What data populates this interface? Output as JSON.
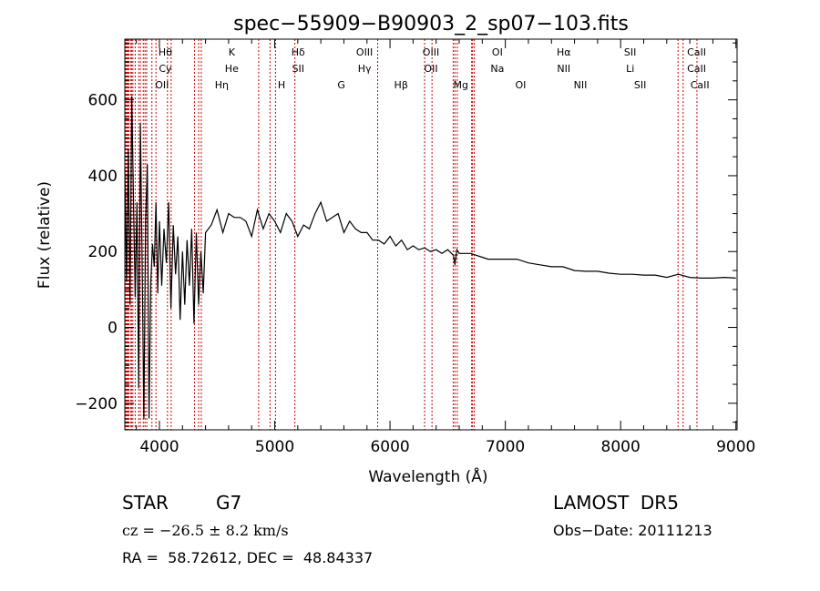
{
  "chart_data": {
    "type": "line",
    "title": "spec−55909−B90903_2_sp07−103.fits",
    "xlabel": "Wavelength (Å)",
    "ylabel": "Flux (relative)",
    "xlim": [
      3700,
      9010
    ],
    "ylim": [
      -270,
      760
    ],
    "xticks": [
      4000,
      5000,
      6000,
      7000,
      8000,
      9000
    ],
    "xtick_labels": [
      "4000",
      "5000",
      "6000",
      "7000",
      "8000",
      "9000"
    ],
    "yticks": [
      -200,
      0,
      200,
      400,
      600
    ],
    "ytick_labels": [
      "−200",
      "0",
      "200",
      "400",
      "600"
    ],
    "grid": false,
    "series": [
      {
        "x": [
          3700,
          3715,
          3730,
          3745,
          3760,
          3775,
          3790,
          3805,
          3820,
          3835,
          3850,
          3865,
          3880,
          3895,
          3910,
          3925,
          3940,
          3955,
          3970,
          3985,
          4000,
          4020,
          4040,
          4060,
          4080,
          4100,
          4120,
          4140,
          4160,
          4180,
          4200,
          4220,
          4240,
          4260,
          4280,
          4300,
          4320,
          4340,
          4360,
          4380,
          4400,
          4450,
          4500,
          4550,
          4600,
          4650,
          4700,
          4750,
          4800,
          4850,
          4900,
          4950,
          5000,
          5050,
          5100,
          5150,
          5200,
          5250,
          5300,
          5350,
          5400,
          5450,
          5500,
          5550,
          5600,
          5650,
          5700,
          5750,
          5800,
          5850,
          5900,
          5950,
          6000,
          6050,
          6100,
          6150,
          6200,
          6250,
          6300,
          6350,
          6400,
          6450,
          6500,
          6550,
          6563,
          6580,
          6600,
          6650,
          6700,
          6750,
          6800,
          6850,
          6900,
          6950,
          7000,
          7100,
          7200,
          7300,
          7400,
          7500,
          7600,
          7700,
          7800,
          7900,
          8000,
          8100,
          8200,
          8300,
          8400,
          8500,
          8600,
          8700,
          8800,
          8900,
          9000
        ],
        "y": [
          420,
          120,
          470,
          60,
          610,
          340,
          80,
          330,
          -160,
          540,
          170,
          -240,
          280,
          430,
          -240,
          120,
          220,
          160,
          330,
          90,
          280,
          110,
          260,
          170,
          330,
          50,
          270,
          140,
          240,
          20,
          200,
          60,
          230,
          110,
          260,
          10,
          250,
          60,
          200,
          90,
          250,
          270,
          310,
          250,
          300,
          290,
          290,
          280,
          240,
          310,
          260,
          300,
          280,
          250,
          300,
          280,
          240,
          270,
          260,
          300,
          330,
          280,
          290,
          300,
          250,
          280,
          260,
          250,
          250,
          230,
          230,
          220,
          240,
          215,
          230,
          205,
          215,
          205,
          210,
          200,
          205,
          195,
          205,
          190,
          165,
          205,
          195,
          195,
          195,
          190,
          185,
          180,
          180,
          180,
          180,
          180,
          170,
          165,
          160,
          160,
          150,
          148,
          148,
          143,
          140,
          140,
          138,
          138,
          132,
          140,
          132,
          130,
          130,
          132,
          130
        ]
      }
    ],
    "lines": {
      "x": [
        3705,
        3712,
        3720,
        3728,
        3735,
        3750,
        3760,
        3770,
        3790,
        3820,
        3835,
        3860,
        3875,
        3890,
        3935,
        3970,
        4070,
        4102,
        4305,
        4340,
        4363,
        4861,
        4959,
        5007,
        5175,
        5893,
        6300,
        6364,
        6548,
        6563,
        6583,
        6708,
        6716,
        6731,
        8498,
        8542,
        8662
      ],
      "labels_row1": [
        "Hθ",
        "K",
        "Hδ",
        "OIII",
        "OIII",
        "OI",
        "Hα",
        "SII",
        "CaII"
      ],
      "labels_row2": [
        "Cy",
        "He",
        "SII",
        "Hγ",
        "OII",
        "Na",
        "NII",
        "Li",
        "CaII"
      ],
      "labels_row3": [
        "OII",
        "Hη",
        "H",
        "G",
        "Hβ",
        "Mg",
        "OI",
        "NII",
        "SII",
        "CaII"
      ]
    }
  },
  "info": {
    "object_class": "STAR",
    "subclass": "G7",
    "survey": "LAMOST  DR5",
    "redshift": "cz = −26.5 ± 8.2 km/s",
    "obs_date": "Obs−Date: 20111213",
    "coords": "RA =  58.72612, DEC =  48.84337"
  }
}
